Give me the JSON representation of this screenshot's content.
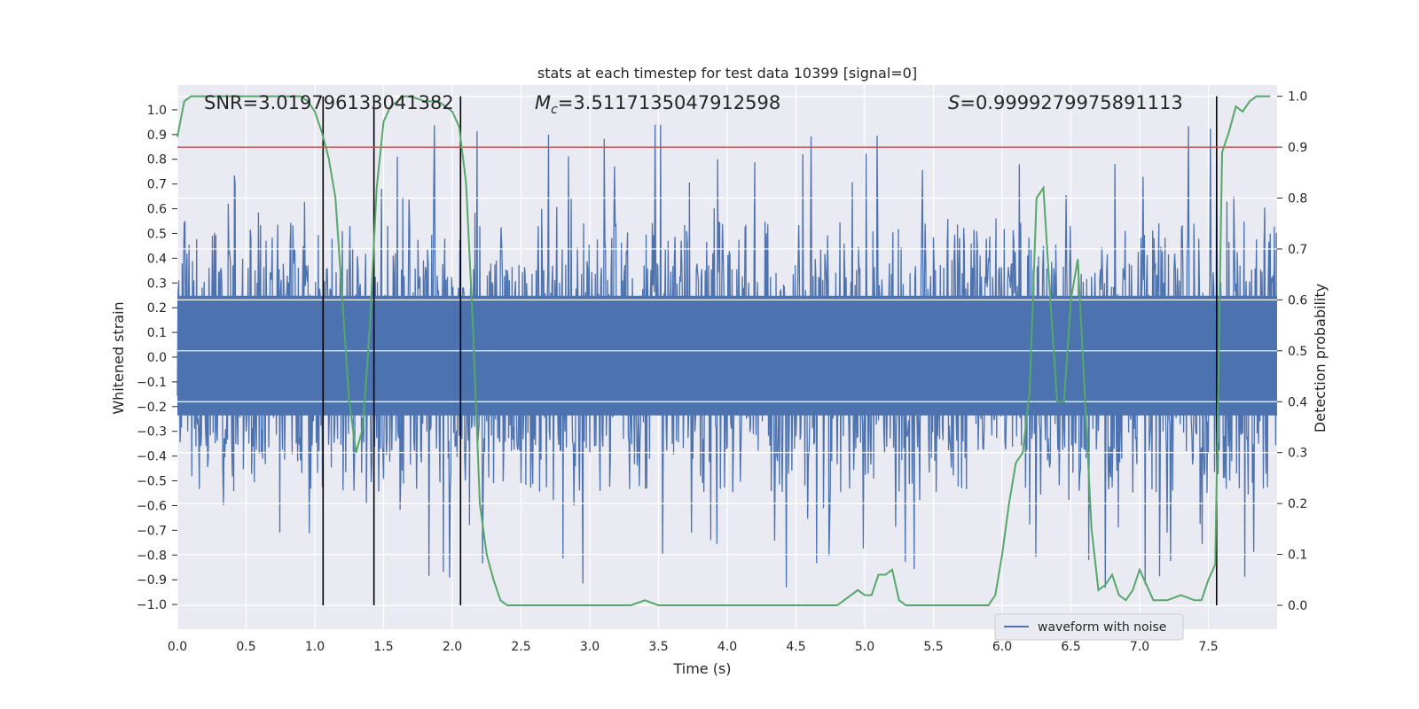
{
  "chart_data": {
    "type": "line",
    "title": "stats at each timestep for test data 10399 [signal=0]",
    "xlabel": "Time (s)",
    "ylabel": "Whitened strain",
    "y2label": "Detection probability",
    "xlim": [
      0.0,
      8.0
    ],
    "ylim": [
      -1.1,
      1.1
    ],
    "y2lim": [
      -0.047,
      1.022
    ],
    "xticks": [
      "0.0",
      "0.5",
      "1.0",
      "1.5",
      "2.0",
      "2.5",
      "3.0",
      "3.5",
      "4.0",
      "4.5",
      "5.0",
      "5.5",
      "6.0",
      "6.5",
      "7.0",
      "7.5"
    ],
    "yticks": [
      "1.0",
      "0.9",
      "0.8",
      "0.7",
      "0.6",
      "0.5",
      "0.4",
      "0.3",
      "0.2",
      "0.1",
      "0.0",
      "-0.1",
      "-0.2",
      "-0.3",
      "-0.4",
      "-0.5",
      "-0.6",
      "-0.7",
      "-0.8",
      "-0.9",
      "-1.0"
    ],
    "y2ticks": [
      "1.0",
      "0.9",
      "0.8",
      "0.7",
      "0.6",
      "0.5",
      "0.4",
      "0.3",
      "0.2",
      "0.1",
      "0.0"
    ],
    "annotations": {
      "snr": "SNR=3.019796133041382",
      "mc_symbol": "M",
      "mc_sub": "c",
      "mc_value": "=3.5117135047912598",
      "s_symbol": "S",
      "s_value": "=0.9999279975891113"
    },
    "legend": {
      "label": "waveform with noise",
      "location": "lower-right"
    },
    "threshold": {
      "value": 0.9,
      "axis": "y2",
      "color": "#c44e52"
    },
    "vertical_lines_x": [
      1.06,
      1.43,
      2.06,
      7.56
    ],
    "waveform": {
      "name": "waveform with noise",
      "color": "#4c72b0",
      "samples": 1600,
      "typical_upper": 0.4,
      "typical_lower": -0.38,
      "peak_max": 0.98,
      "peak_min": -1.0
    },
    "series": [
      {
        "name": "detection probability",
        "axis": "y2",
        "color": "#55a868",
        "x": [
          0.0,
          0.05,
          0.1,
          0.2,
          0.3,
          0.4,
          0.5,
          0.6,
          0.7,
          0.8,
          0.9,
          0.95,
          1.0,
          1.05,
          1.1,
          1.15,
          1.2,
          1.25,
          1.3,
          1.35,
          1.4,
          1.45,
          1.5,
          1.55,
          1.6,
          1.65,
          1.7,
          1.75,
          1.8,
          1.9,
          1.95,
          2.0,
          2.05,
          2.1,
          2.15,
          2.2,
          2.25,
          2.3,
          2.35,
          2.4,
          2.5,
          2.6,
          2.7,
          2.8,
          2.9,
          3.0,
          3.1,
          3.2,
          3.3,
          3.4,
          3.5,
          3.6,
          3.7,
          3.8,
          3.9,
          4.0,
          4.1,
          4.2,
          4.3,
          4.4,
          4.5,
          4.6,
          4.7,
          4.8,
          4.85,
          4.9,
          4.95,
          5.0,
          5.05,
          5.1,
          5.15,
          5.2,
          5.25,
          5.3,
          5.4,
          5.5,
          5.6,
          5.7,
          5.8,
          5.85,
          5.9,
          5.95,
          6.0,
          6.05,
          6.1,
          6.15,
          6.2,
          6.25,
          6.3,
          6.35,
          6.4,
          6.45,
          6.5,
          6.55,
          6.6,
          6.65,
          6.7,
          6.75,
          6.8,
          6.85,
          6.9,
          6.95,
          7.0,
          7.05,
          7.1,
          7.15,
          7.2,
          7.3,
          7.4,
          7.45,
          7.5,
          7.55,
          7.6,
          7.65,
          7.7,
          7.75,
          7.8,
          7.85,
          7.9,
          7.95
        ],
        "values": [
          0.92,
          0.99,
          1.0,
          1.0,
          1.0,
          1.0,
          1.0,
          1.0,
          1.0,
          1.0,
          1.0,
          0.99,
          0.97,
          0.93,
          0.88,
          0.8,
          0.6,
          0.4,
          0.3,
          0.35,
          0.55,
          0.82,
          0.95,
          0.98,
          0.99,
          1.0,
          1.0,
          0.995,
          0.99,
          0.99,
          0.98,
          0.97,
          0.94,
          0.83,
          0.55,
          0.2,
          0.1,
          0.05,
          0.01,
          0.0,
          0.0,
          0.0,
          0.0,
          0.0,
          0.0,
          0.0,
          0.0,
          0.0,
          0.0,
          0.01,
          0.0,
          0.0,
          0.0,
          0.0,
          0.0,
          0.0,
          0.0,
          0.0,
          0.0,
          0.0,
          0.0,
          0.0,
          0.0,
          0.0,
          0.01,
          0.02,
          0.03,
          0.02,
          0.02,
          0.06,
          0.06,
          0.07,
          0.01,
          0.0,
          0.0,
          0.0,
          0.0,
          0.0,
          0.0,
          0.0,
          0.0,
          0.02,
          0.1,
          0.2,
          0.28,
          0.3,
          0.42,
          0.8,
          0.82,
          0.6,
          0.4,
          0.4,
          0.6,
          0.68,
          0.42,
          0.15,
          0.03,
          0.04,
          0.06,
          0.02,
          0.01,
          0.03,
          0.07,
          0.04,
          0.01,
          0.01,
          0.01,
          0.02,
          0.01,
          0.01,
          0.05,
          0.08,
          0.89,
          0.93,
          0.98,
          0.97,
          0.99,
          1.0,
          1.0,
          1.0
        ]
      }
    ]
  }
}
